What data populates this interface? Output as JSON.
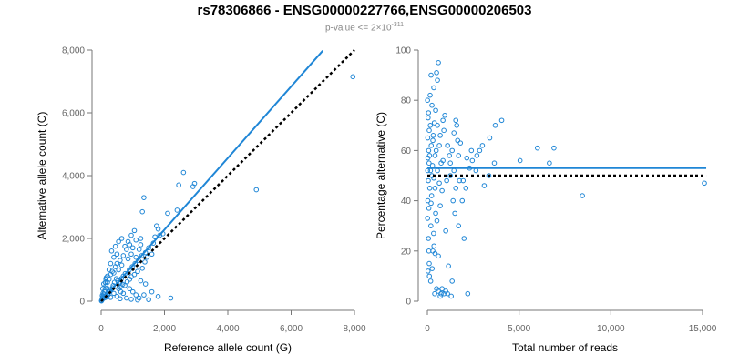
{
  "page": {
    "title": "rs78306866 - ENSG00000227766,ENSG00000206503",
    "subtitle_prefix": "p-value <= 2×10",
    "subtitle_exponent": "-311"
  },
  "colors": {
    "points": "#1f86d6",
    "fit_line": "#1f86d6",
    "reference_line": "#000000",
    "axis": "#777777"
  },
  "chart_data": [
    {
      "type": "scatter",
      "name": "allele-counts",
      "xlabel": "Reference allele count (G)",
      "ylabel": "Alternative allele count (C)",
      "xlim": [
        0,
        8000
      ],
      "ylim": [
        0,
        8000
      ],
      "xticks": [
        0,
        2000,
        4000,
        6000,
        8000
      ],
      "yticks": [
        0,
        2000,
        4000,
        6000,
        8000
      ],
      "xtick_labels": [
        "0",
        "2,000",
        "4,000",
        "6,000",
        "8,000"
      ],
      "ytick_labels": [
        "0",
        "2,000",
        "4,000",
        "6,000",
        "8,000"
      ],
      "fit_line": {
        "slope": 1.14,
        "intercept": 0,
        "x_range": [
          0,
          7000
        ]
      },
      "reference_line": {
        "slope": 1.0,
        "intercept": 0,
        "x_range": [
          0,
          8000
        ]
      },
      "points": [
        [
          7950,
          7150
        ],
        [
          4900,
          3550
        ],
        [
          2600,
          4100
        ],
        [
          2900,
          3650
        ],
        [
          2950,
          3750
        ],
        [
          2450,
          3700
        ],
        [
          1350,
          3300
        ],
        [
          1300,
          2850
        ],
        [
          2400,
          2900
        ],
        [
          1800,
          2300
        ],
        [
          1750,
          2400
        ],
        [
          2100,
          2800
        ],
        [
          1250,
          1800
        ],
        [
          1200,
          1650
        ],
        [
          1650,
          1850
        ],
        [
          1500,
          1700
        ],
        [
          1050,
          2250
        ],
        [
          1250,
          2000
        ],
        [
          1400,
          1550
        ],
        [
          900,
          1800
        ],
        [
          1000,
          1700
        ],
        [
          800,
          1650
        ],
        [
          1100,
          1400
        ],
        [
          950,
          1500
        ],
        [
          700,
          1450
        ],
        [
          600,
          1300
        ],
        [
          850,
          1350
        ],
        [
          500,
          1200
        ],
        [
          450,
          1100
        ],
        [
          650,
          1150
        ],
        [
          350,
          950
        ],
        [
          300,
          850
        ],
        [
          550,
          1000
        ],
        [
          400,
          900
        ],
        [
          250,
          700
        ],
        [
          200,
          600
        ],
        [
          150,
          500
        ],
        [
          180,
          420
        ],
        [
          120,
          350
        ],
        [
          100,
          300
        ],
        [
          90,
          220
        ],
        [
          60,
          150
        ],
        [
          40,
          100
        ],
        [
          30,
          60
        ],
        [
          20,
          30
        ],
        [
          10,
          10
        ],
        [
          75,
          90
        ],
        [
          110,
          130
        ],
        [
          750,
          500
        ],
        [
          820,
          620
        ],
        [
          680,
          540
        ],
        [
          900,
          700
        ],
        [
          950,
          780
        ],
        [
          1050,
          850
        ],
        [
          1150,
          950
        ],
        [
          1300,
          1050
        ],
        [
          600,
          450
        ],
        [
          550,
          400
        ],
        [
          520,
          650
        ],
        [
          480,
          720
        ],
        [
          420,
          600
        ],
        [
          380,
          500
        ],
        [
          360,
          430
        ],
        [
          320,
          380
        ],
        [
          280,
          340
        ],
        [
          260,
          300
        ],
        [
          230,
          250
        ],
        [
          210,
          190
        ],
        [
          170,
          160
        ],
        [
          140,
          120
        ],
        [
          700,
          800
        ],
        [
          760,
          880
        ],
        [
          640,
          720
        ],
        [
          610,
          610
        ],
        [
          580,
          560
        ],
        [
          890,
          1000
        ],
        [
          980,
          1100
        ],
        [
          1070,
          1200
        ],
        [
          1180,
          1300
        ],
        [
          1280,
          1450
        ],
        [
          1380,
          1250
        ],
        [
          1450,
          1400
        ],
        [
          1600,
          1500
        ],
        [
          1700,
          2050
        ],
        [
          1850,
          2100
        ],
        [
          1950,
          2150
        ],
        [
          620,
          300
        ],
        [
          700,
          250
        ],
        [
          900,
          400
        ],
        [
          1000,
          300
        ],
        [
          1100,
          200
        ],
        [
          1200,
          100
        ],
        [
          1350,
          200
        ],
        [
          1500,
          50
        ],
        [
          1800,
          150
        ],
        [
          2200,
          100
        ],
        [
          800,
          100
        ],
        [
          600,
          80
        ],
        [
          500,
          150
        ],
        [
          400,
          250
        ],
        [
          300,
          120
        ],
        [
          950,
          60
        ],
        [
          1150,
          40
        ],
        [
          1600,
          300
        ],
        [
          1400,
          550
        ],
        [
          1250,
          650
        ],
        [
          850,
          1900
        ],
        [
          750,
          1750
        ],
        [
          500,
          1500
        ],
        [
          400,
          1400
        ],
        [
          300,
          1200
        ],
        [
          250,
          1000
        ],
        [
          200,
          800
        ],
        [
          150,
          700
        ],
        [
          330,
          1600
        ],
        [
          450,
          1750
        ],
        [
          550,
          1900
        ],
        [
          650,
          2000
        ],
        [
          950,
          2100
        ],
        [
          1100,
          1950
        ],
        [
          50,
          400
        ],
        [
          80,
          550
        ],
        [
          60,
          250
        ],
        [
          35,
          180
        ],
        [
          130,
          600
        ],
        [
          160,
          750
        ]
      ]
    },
    {
      "type": "scatter",
      "name": "percentage-alternative",
      "xlabel": "Total number of reads",
      "ylabel": "Percentage alternative (C)",
      "xlim": [
        0,
        15000
      ],
      "ylim": [
        0,
        100
      ],
      "xticks": [
        0,
        5000,
        10000,
        15000
      ],
      "yticks": [
        0,
        20,
        40,
        60,
        80,
        100
      ],
      "xtick_labels": [
        "0",
        "5,000",
        "10,000",
        "15,000"
      ],
      "ytick_labels": [
        "0",
        "20",
        "40",
        "60",
        "80",
        "100"
      ],
      "fit_line": {
        "y": 53,
        "x_range": [
          0,
          15200
        ]
      },
      "reference_line": {
        "y": 50,
        "x_range": [
          0,
          15200
        ]
      },
      "points": [
        [
          15100,
          47
        ],
        [
          8450,
          42
        ],
        [
          6900,
          61
        ],
        [
          6650,
          55
        ],
        [
          6000,
          61
        ],
        [
          5050,
          56
        ],
        [
          4050,
          72
        ],
        [
          3700,
          70
        ],
        [
          3650,
          55
        ],
        [
          3350,
          50
        ],
        [
          3100,
          46
        ],
        [
          2850,
          60
        ],
        [
          2650,
          52
        ],
        [
          2450,
          56
        ],
        [
          2300,
          53
        ],
        [
          2150,
          57
        ],
        [
          2000,
          25
        ],
        [
          1950,
          48
        ],
        [
          1800,
          63
        ],
        [
          1700,
          58
        ],
        [
          1550,
          45
        ],
        [
          1450,
          52
        ],
        [
          1350,
          8
        ],
        [
          1250,
          55
        ],
        [
          1150,
          14
        ],
        [
          1100,
          62
        ],
        [
          1050,
          48
        ],
        [
          950,
          74
        ],
        [
          900,
          68
        ],
        [
          850,
          56
        ],
        [
          800,
          44
        ],
        [
          750,
          3
        ],
        [
          700,
          38
        ],
        [
          650,
          62
        ],
        [
          600,
          95
        ],
        [
          550,
          88
        ],
        [
          500,
          91
        ],
        [
          450,
          35
        ],
        [
          420,
          58
        ],
        [
          380,
          71
        ],
        [
          350,
          49
        ],
        [
          320,
          66
        ],
        [
          300,
          20
        ],
        [
          280,
          54
        ],
        [
          250,
          78
        ],
        [
          230,
          42
        ],
        [
          210,
          62
        ],
        [
          190,
          30
        ],
        [
          170,
          52
        ],
        [
          150,
          82
        ],
        [
          130,
          45
        ],
        [
          110,
          10
        ],
        [
          100,
          68
        ],
        [
          90,
          55
        ],
        [
          80,
          37
        ],
        [
          70,
          60
        ],
        [
          60,
          25
        ],
        [
          50,
          48
        ],
        [
          40,
          73
        ],
        [
          35,
          12
        ],
        [
          30,
          57
        ],
        [
          25,
          40
        ],
        [
          20,
          65
        ],
        [
          15,
          52
        ],
        [
          10,
          33
        ],
        [
          8,
          80
        ],
        [
          1600,
          70
        ],
        [
          1400,
          40
        ],
        [
          1200,
          58
        ],
        [
          1000,
          28
        ],
        [
          850,
          72
        ],
        [
          700,
          66
        ],
        [
          600,
          18
        ],
        [
          550,
          52
        ],
        [
          480,
          60
        ],
        [
          420,
          45
        ],
        [
          360,
          22
        ],
        [
          300,
          64
        ],
        [
          250,
          50
        ],
        [
          200,
          39
        ],
        [
          160,
          70
        ],
        [
          120,
          58
        ],
        [
          80,
          20
        ],
        [
          60,
          75
        ],
        [
          900,
          3
        ],
        [
          1000,
          4
        ],
        [
          1100,
          3
        ],
        [
          1300,
          2
        ],
        [
          800,
          5
        ],
        [
          2200,
          3
        ],
        [
          400,
          3
        ],
        [
          500,
          5
        ],
        [
          600,
          4
        ],
        [
          700,
          2
        ],
        [
          1500,
          35
        ],
        [
          1700,
          30
        ],
        [
          1900,
          40
        ],
        [
          2100,
          45
        ],
        [
          2400,
          60
        ],
        [
          2700,
          58
        ],
        [
          3000,
          62
        ],
        [
          3400,
          65
        ],
        [
          1250,
          50
        ],
        [
          1350,
          60
        ],
        [
          1450,
          67
        ],
        [
          1550,
          72
        ],
        [
          1650,
          64
        ],
        [
          1750,
          48
        ],
        [
          200,
          90
        ],
        [
          350,
          85
        ],
        [
          450,
          76
        ],
        [
          550,
          70
        ],
        [
          650,
          47
        ],
        [
          750,
          55
        ],
        [
          100,
          15
        ],
        [
          180,
          8
        ],
        [
          260,
          13
        ],
        [
          340,
          27
        ],
        [
          420,
          19
        ],
        [
          520,
          32
        ]
      ]
    }
  ]
}
